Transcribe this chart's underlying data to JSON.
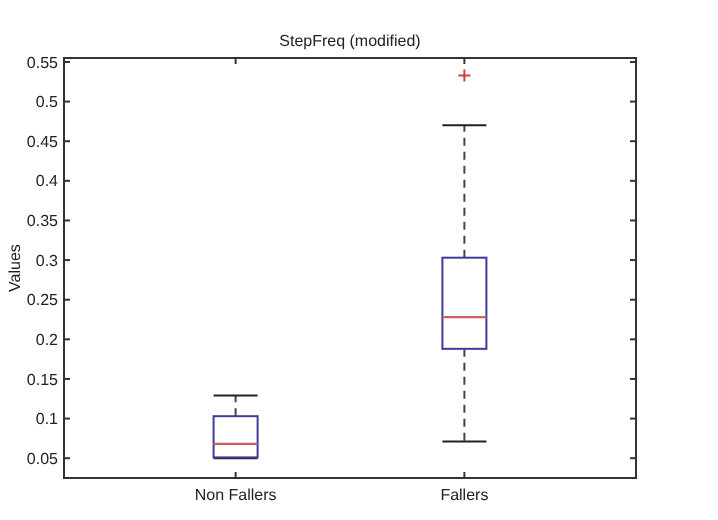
{
  "chart_data": {
    "type": "box",
    "title": "StepFreq (modified)",
    "ylabel": "Values",
    "categories": [
      "Non Fallers",
      "Fallers"
    ],
    "boxes": [
      {
        "low": 0.05,
        "q1": 0.051,
        "median": 0.068,
        "q3": 0.103,
        "high": 0.129
      },
      {
        "low": 0.071,
        "q1": 0.188,
        "median": 0.228,
        "q3": 0.303,
        "high": 0.47,
        "outliers": [
          0.533
        ]
      }
    ],
    "ylim": [
      0.025,
      0.555
    ],
    "yticks": [
      {
        "value": 0.05,
        "label": "0.05"
      },
      {
        "value": 0.1,
        "label": "0.1"
      },
      {
        "value": 0.15,
        "label": "0.15"
      },
      {
        "value": 0.2,
        "label": "0.2"
      },
      {
        "value": 0.25,
        "label": "0.25"
      },
      {
        "value": 0.3,
        "label": "0.3"
      },
      {
        "value": 0.35,
        "label": "0.35"
      },
      {
        "value": 0.4,
        "label": "0.4"
      },
      {
        "value": 0.45,
        "label": "0.45"
      },
      {
        "value": 0.5,
        "label": "0.5"
      },
      {
        "value": 0.55,
        "label": "0.55"
      }
    ]
  }
}
